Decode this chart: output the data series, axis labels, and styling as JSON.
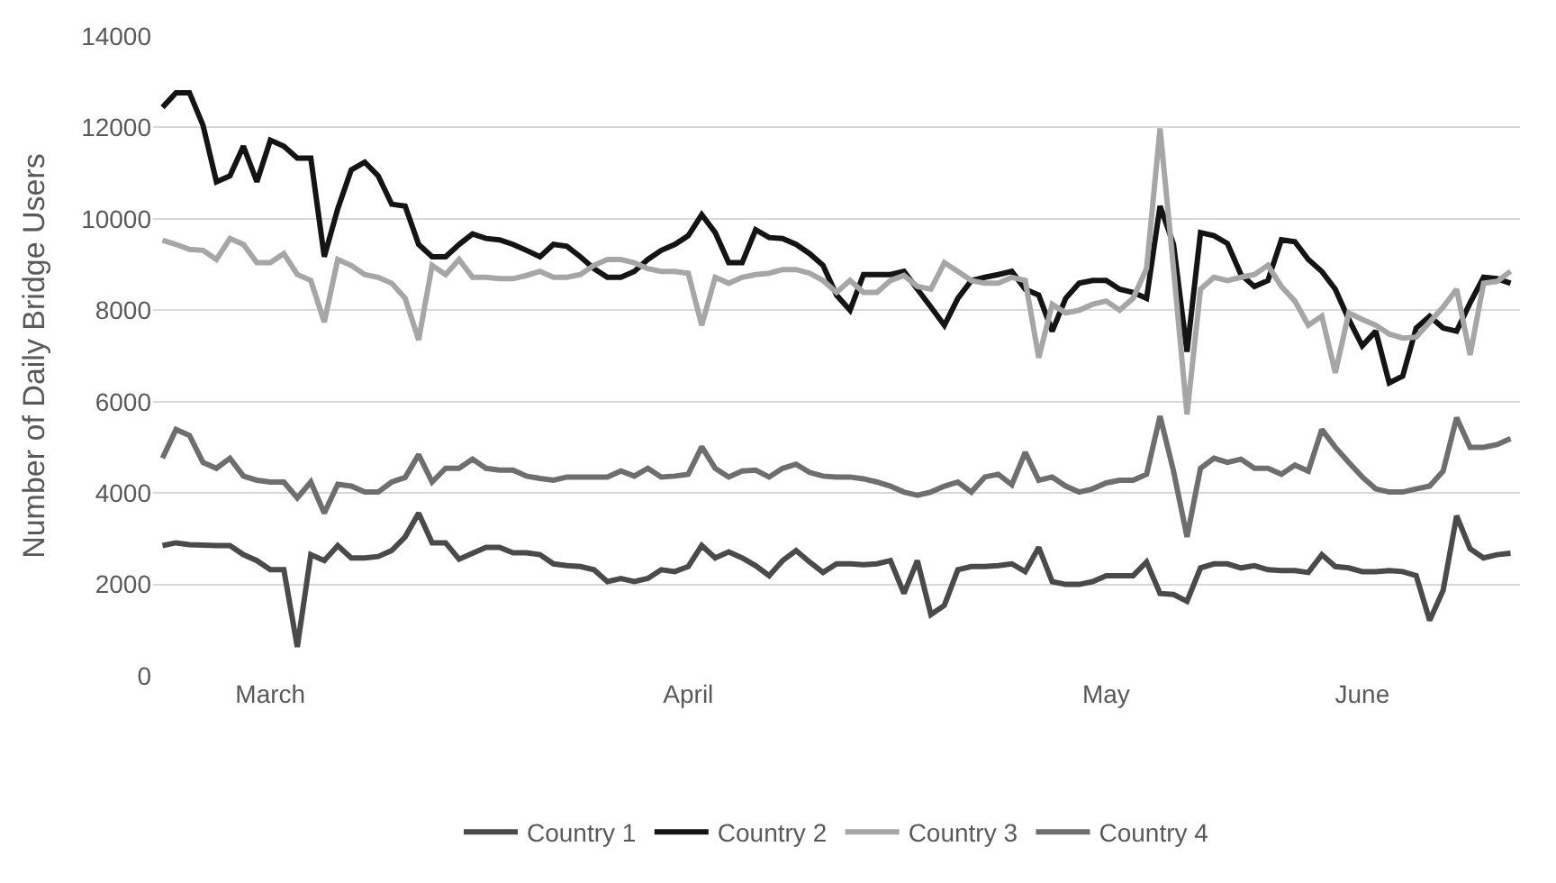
{
  "chart_data": {
    "type": "line",
    "ylabel": "Number of Daily Bridge Users",
    "ylim": [
      0,
      14000
    ],
    "yticks": [
      0,
      2000,
      4000,
      6000,
      8000,
      10000,
      12000,
      14000
    ],
    "grid": "y",
    "legend": "bottom",
    "marker": "none",
    "line_style": "solid",
    "categories": [
      null,
      null,
      null,
      null,
      null,
      null,
      null,
      null,
      "March",
      null,
      null,
      null,
      null,
      null,
      null,
      null,
      null,
      null,
      null,
      null,
      null,
      null,
      null,
      null,
      null,
      null,
      null,
      null,
      null,
      null,
      null,
      null,
      null,
      null,
      null,
      null,
      null,
      null,
      null,
      "April",
      null,
      null,
      null,
      null,
      null,
      null,
      null,
      null,
      null,
      null,
      null,
      null,
      null,
      null,
      null,
      null,
      null,
      null,
      null,
      null,
      null,
      null,
      null,
      null,
      null,
      null,
      null,
      null,
      null,
      null,
      "May",
      null,
      null,
      null,
      null,
      null,
      null,
      null,
      null,
      null,
      null,
      null,
      null,
      null,
      null,
      null,
      null,
      null,
      null,
      "June",
      null,
      null,
      null,
      null,
      null,
      null,
      null,
      null,
      null,
      null,
      null
    ],
    "series": [
      {
        "name": "Country 1",
        "color": "#4a4a4a",
        "values": [
          2850,
          2910,
          2870,
          2860,
          2850,
          2850,
          2650,
          2520,
          2320,
          2320,
          630,
          2650,
          2520,
          2850,
          2580,
          2580,
          2610,
          2740,
          3040,
          3560,
          2910,
          2910,
          2550,
          2680,
          2810,
          2810,
          2690,
          2690,
          2650,
          2450,
          2410,
          2390,
          2320,
          2060,
          2130,
          2060,
          2130,
          2320,
          2280,
          2390,
          2850,
          2580,
          2710,
          2580,
          2410,
          2190,
          2520,
          2740,
          2490,
          2260,
          2450,
          2450,
          2430,
          2450,
          2520,
          1800,
          2520,
          1340,
          1540,
          2320,
          2390,
          2390,
          2410,
          2450,
          2280,
          2810,
          2060,
          2000,
          2000,
          2060,
          2190,
          2190,
          2190,
          2490,
          1800,
          1780,
          1630,
          2360,
          2450,
          2450,
          2360,
          2410,
          2320,
          2300,
          2300,
          2260,
          2650,
          2390,
          2360,
          2280,
          2280,
          2300,
          2280,
          2190,
          1210,
          1870,
          3500,
          2780,
          2580,
          2650,
          2680
        ]
      },
      {
        "name": "Country 2",
        "color": "#141414",
        "values": [
          12440,
          12760,
          12760,
          12050,
          10810,
          10940,
          11590,
          10810,
          11720,
          11590,
          11330,
          11330,
          9170,
          10220,
          11070,
          11240,
          10940,
          10320,
          10280,
          9440,
          9170,
          9170,
          9440,
          9670,
          9570,
          9540,
          9440,
          9310,
          9170,
          9440,
          9400,
          9170,
          8910,
          8720,
          8720,
          8850,
          9110,
          9310,
          9440,
          9630,
          10090,
          9700,
          9040,
          9040,
          9760,
          9590,
          9570,
          9440,
          9240,
          8980,
          8330,
          8000,
          8780,
          8780,
          8780,
          8850,
          8460,
          8070,
          7670,
          8260,
          8650,
          8720,
          8780,
          8850,
          8460,
          8330,
          7540,
          8260,
          8590,
          8650,
          8650,
          8460,
          8390,
          8260,
          10280,
          9440,
          7090,
          9700,
          9630,
          9460,
          8780,
          8520,
          8650,
          9540,
          9500,
          9110,
          8850,
          8460,
          7800,
          7220,
          7540,
          6410,
          6560,
          7610,
          7870,
          7610,
          7540,
          8160,
          8720,
          8690,
          8590
        ]
      },
      {
        "name": "Country 3",
        "color": "#a6a6a6",
        "values": [
          9530,
          9440,
          9330,
          9310,
          9110,
          9570,
          9440,
          9040,
          9040,
          9240,
          8780,
          8650,
          7740,
          9110,
          8980,
          8780,
          8720,
          8590,
          8260,
          7350,
          8980,
          8780,
          9110,
          8720,
          8720,
          8690,
          8690,
          8760,
          8850,
          8720,
          8720,
          8780,
          8980,
          9110,
          9110,
          9040,
          8910,
          8850,
          8850,
          8810,
          7670,
          8720,
          8590,
          8720,
          8780,
          8810,
          8890,
          8890,
          8810,
          8650,
          8390,
          8650,
          8390,
          8390,
          8650,
          8760,
          8520,
          8460,
          9040,
          8850,
          8650,
          8590,
          8590,
          8720,
          8650,
          6960,
          8130,
          7940,
          8000,
          8130,
          8200,
          8000,
          8260,
          8910,
          11980,
          8910,
          5720,
          8460,
          8720,
          8650,
          8720,
          8780,
          8980,
          8520,
          8200,
          7670,
          7870,
          6630,
          7940,
          7800,
          7670,
          7480,
          7390,
          7410,
          7740,
          8070,
          8460,
          7020,
          8590,
          8630,
          8850
        ]
      },
      {
        "name": "Country 4",
        "color": "#6e6e6e",
        "values": [
          4760,
          5390,
          5260,
          4670,
          4540,
          4760,
          4370,
          4280,
          4240,
          4240,
          3890,
          4240,
          3560,
          4190,
          4150,
          4020,
          4020,
          4240,
          4340,
          4840,
          4240,
          4540,
          4540,
          4740,
          4540,
          4500,
          4500,
          4370,
          4320,
          4280,
          4350,
          4350,
          4350,
          4350,
          4480,
          4370,
          4540,
          4350,
          4370,
          4410,
          5010,
          4540,
          4350,
          4480,
          4500,
          4350,
          4540,
          4630,
          4450,
          4370,
          4350,
          4350,
          4310,
          4240,
          4150,
          4020,
          3950,
          4020,
          4150,
          4240,
          4020,
          4350,
          4410,
          4180,
          4890,
          4280,
          4350,
          4150,
          4020,
          4090,
          4220,
          4280,
          4280,
          4410,
          5680,
          4480,
          3040,
          4540,
          4760,
          4670,
          4740,
          4540,
          4540,
          4410,
          4610,
          4480,
          5390,
          5000,
          4670,
          4350,
          4090,
          4020,
          4020,
          4090,
          4150,
          4480,
          5650,
          5000,
          5000,
          5060,
          5190
        ]
      }
    ]
  }
}
